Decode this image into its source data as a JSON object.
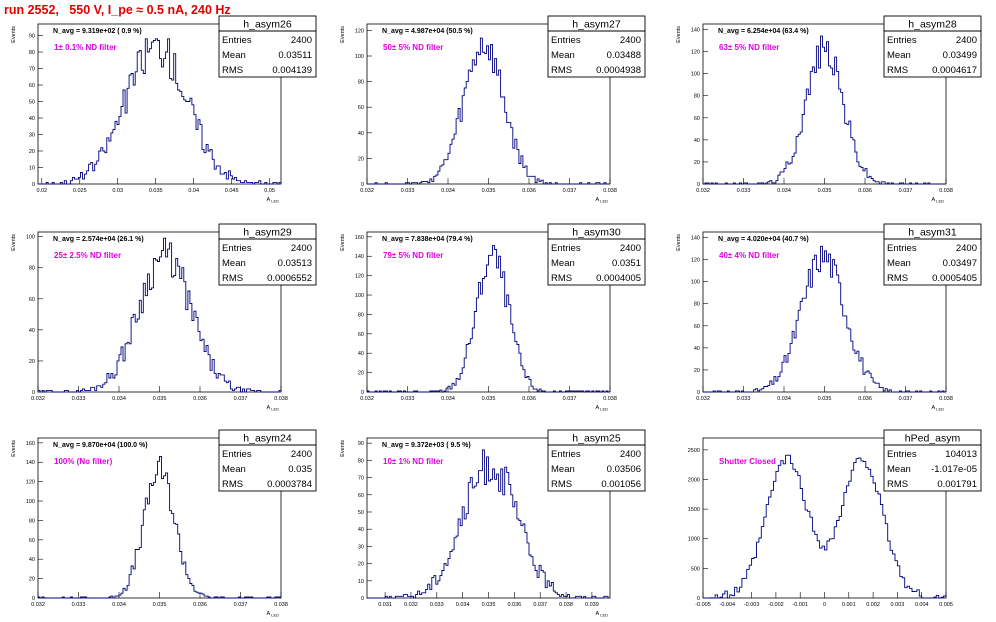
{
  "header": {
    "run_title": "run 2552,   550 V, I_pe ≈ 0.5 nA, 240 Hz"
  },
  "colors": {
    "histogram_line": "#000080",
    "annotation": "#e000e0",
    "title_red": "#e00000"
  },
  "chart_data": [
    {
      "type": "histogram",
      "name": "h_asym26",
      "xlabel": "A_LED",
      "ylabel": "Events",
      "navg_text": "N_avg = 9.319e+02 ( 0.9 %)",
      "note": "1± 0.1% ND filter",
      "stats": {
        "entries": "2400",
        "mean": "0.03511",
        "rms": "0.004139"
      },
      "xlim": [
        0.0195,
        0.0515
      ],
      "ylim": [
        0,
        97
      ],
      "xticks": [
        0.02,
        0.025,
        0.03,
        0.035,
        0.04,
        0.045,
        0.05
      ],
      "xtick_labels": [
        "0.02",
        "0.025",
        "0.03",
        "0.035",
        "0.04",
        "0.045",
        "0.05"
      ],
      "yticks": [
        0,
        10,
        20,
        30,
        40,
        50,
        60,
        70,
        80,
        90
      ],
      "peak": 95,
      "mu": 0.0351,
      "sigma": 0.0041,
      "bins": 120,
      "seed": 26
    },
    {
      "type": "histogram",
      "name": "h_asym27",
      "xlabel": "A_LED",
      "ylabel": "Events",
      "navg_text": "N_avg = 4.987e+04 (50.5 %)",
      "note": "50± 5% ND filter",
      "stats": {
        "entries": "2400",
        "mean": "0.03488",
        "rms": "0.0004938"
      },
      "xlim": [
        0.032,
        0.038
      ],
      "ylim": [
        0,
        125
      ],
      "xticks": [
        0.032,
        0.033,
        0.034,
        0.035,
        0.036,
        0.037,
        0.038
      ],
      "xtick_labels": [
        "0.032",
        "0.033",
        "0.034",
        "0.035",
        "0.036",
        "0.037",
        "0.038"
      ],
      "yticks": [
        0,
        20,
        40,
        60,
        80,
        100,
        120
      ],
      "peak": 122,
      "mu": 0.03488,
      "sigma": 0.00049,
      "bins": 120,
      "seed": 27
    },
    {
      "type": "histogram",
      "name": "h_asym28",
      "xlabel": "A_LED",
      "ylabel": "Events",
      "navg_text": "N_avg = 6.254e+04 (63.4 %)",
      "note": "63± 5% ND filter",
      "stats": {
        "entries": "2400",
        "mean": "0.03499",
        "rms": "0.0004617"
      },
      "xlim": [
        0.032,
        0.038
      ],
      "ylim": [
        0,
        145
      ],
      "xticks": [
        0.032,
        0.033,
        0.034,
        0.035,
        0.036,
        0.037,
        0.038
      ],
      "xtick_labels": [
        "0.032",
        "0.033",
        "0.034",
        "0.035",
        "0.036",
        "0.037",
        "0.038"
      ],
      "yticks": [
        0,
        20,
        40,
        60,
        80,
        100,
        120,
        140
      ],
      "peak": 140,
      "mu": 0.035,
      "sigma": 0.00046,
      "bins": 120,
      "seed": 28
    },
    {
      "type": "histogram",
      "name": "h_asym29",
      "xlabel": "A_LED",
      "ylabel": "Events",
      "navg_text": "N_avg = 2.574e+04 (26.1 %)",
      "note": "25± 2.5% ND filter",
      "stats": {
        "entries": "2400",
        "mean": "0.03513",
        "rms": "0.0006552"
      },
      "xlim": [
        0.032,
        0.038
      ],
      "ylim": [
        0,
        103
      ],
      "xticks": [
        0.032,
        0.033,
        0.034,
        0.035,
        0.036,
        0.037,
        0.038
      ],
      "xtick_labels": [
        "0.032",
        "0.033",
        "0.034",
        "0.035",
        "0.036",
        "0.037",
        "0.038"
      ],
      "yticks": [
        0,
        20,
        40,
        60,
        80,
        100
      ],
      "peak": 100,
      "mu": 0.03513,
      "sigma": 0.00065,
      "bins": 120,
      "seed": 29
    },
    {
      "type": "histogram",
      "name": "h_asym30",
      "xlabel": "A_LED",
      "ylabel": "Events",
      "navg_text": "N_avg = 7.838e+04 (79.4 %)",
      "note": "79± 5% ND filter",
      "stats": {
        "entries": "2400",
        "mean": "0.0351",
        "rms": "0.0004005"
      },
      "xlim": [
        0.032,
        0.038
      ],
      "ylim": [
        0,
        165
      ],
      "xticks": [
        0.032,
        0.033,
        0.034,
        0.035,
        0.036,
        0.037,
        0.038
      ],
      "xtick_labels": [
        "0.032",
        "0.033",
        "0.034",
        "0.035",
        "0.036",
        "0.037",
        "0.038"
      ],
      "yticks": [
        0,
        20,
        40,
        60,
        80,
        100,
        120,
        140,
        160
      ],
      "peak": 160,
      "mu": 0.0351,
      "sigma": 0.0004,
      "bins": 120,
      "seed": 30
    },
    {
      "type": "histogram",
      "name": "h_asym31",
      "xlabel": "A_LED",
      "ylabel": "Events",
      "navg_text": "N_avg = 4.020e+04 (40.7 %)",
      "note": "40± 4% ND filter",
      "stats": {
        "entries": "2400",
        "mean": "0.03497",
        "rms": "0.0005405"
      },
      "xlim": [
        0.032,
        0.038
      ],
      "ylim": [
        0,
        145
      ],
      "xticks": [
        0.032,
        0.033,
        0.034,
        0.035,
        0.036,
        0.037,
        0.038
      ],
      "xtick_labels": [
        "0.032",
        "0.033",
        "0.034",
        "0.035",
        "0.036",
        "0.037",
        "0.038"
      ],
      "yticks": [
        0,
        20,
        40,
        60,
        80,
        100,
        120,
        140
      ],
      "peak": 140,
      "mu": 0.03497,
      "sigma": 0.00054,
      "bins": 120,
      "seed": 31
    },
    {
      "type": "histogram",
      "name": "h_asym24",
      "xlabel": "A_LED",
      "ylabel": "Events",
      "navg_text": "N_avg = 9.870e+04 (100.0 %)",
      "note": "100% (No filter)",
      "stats": {
        "entries": "2400",
        "mean": "0.035",
        "rms": "0.0003784"
      },
      "xlim": [
        0.032,
        0.038
      ],
      "ylim": [
        0,
        165
      ],
      "xticks": [
        0.032,
        0.033,
        0.034,
        0.035,
        0.036,
        0.037,
        0.038
      ],
      "xtick_labels": [
        "0.032",
        "0.033",
        "0.034",
        "0.035",
        "0.036",
        "0.037",
        "0.038"
      ],
      "yticks": [
        0,
        20,
        40,
        60,
        80,
        100,
        120,
        140,
        160
      ],
      "peak": 150,
      "mu": 0.035,
      "sigma": 0.00038,
      "bins": 120,
      "seed": 24
    },
    {
      "type": "histogram",
      "name": "h_asym25",
      "xlabel": "A_LED",
      "ylabel": "Events",
      "navg_text": "N_avg = 9.372e+03 ( 9.5 %)",
      "note": "10± 1% ND filter",
      "stats": {
        "entries": "2400",
        "mean": "0.03506",
        "rms": "0.001056"
      },
      "xlim": [
        0.0303,
        0.0397
      ],
      "ylim": [
        0,
        93
      ],
      "xticks": [
        0.031,
        0.032,
        0.033,
        0.034,
        0.035,
        0.036,
        0.037,
        0.038,
        0.039
      ],
      "xtick_labels": [
        "0.031",
        "0.032",
        "0.033",
        "0.034",
        "0.035",
        "0.036",
        "0.037",
        "0.038",
        "0.039"
      ],
      "yticks": [
        0,
        10,
        20,
        30,
        40,
        50,
        60,
        70,
        80,
        90
      ],
      "peak": 88,
      "mu": 0.03506,
      "sigma": 0.00106,
      "bins": 120,
      "seed": 25
    },
    {
      "type": "histogram",
      "name": "hPed_asym",
      "xlabel": "",
      "ylabel": "",
      "navg_text": "",
      "note": "Shutter Closed",
      "stats": {
        "entries": "104013",
        "mean": "-1.017e-05",
        "rms": "0.001791"
      },
      "xlim": [
        -0.005,
        0.005
      ],
      "ylim": [
        0,
        2700
      ],
      "xticks": [
        -0.005,
        -0.004,
        -0.003,
        -0.002,
        -0.001,
        0,
        0.001,
        0.002,
        0.003,
        0.004,
        0.005
      ],
      "xtick_labels": [
        "-0.005",
        "-0.004",
        "-0.003",
        "-0.002",
        "-0.001",
        "0",
        "0.001",
        "0.002",
        "0.003",
        "0.004",
        "0.005"
      ],
      "yticks": [
        0,
        500,
        1000,
        1500,
        2000,
        2500
      ],
      "bimodal": {
        "mu1": -0.00155,
        "mu2": 0.00155,
        "sigma": 0.00085,
        "peak": 2550
      },
      "bins": 100,
      "seed": 99
    }
  ]
}
